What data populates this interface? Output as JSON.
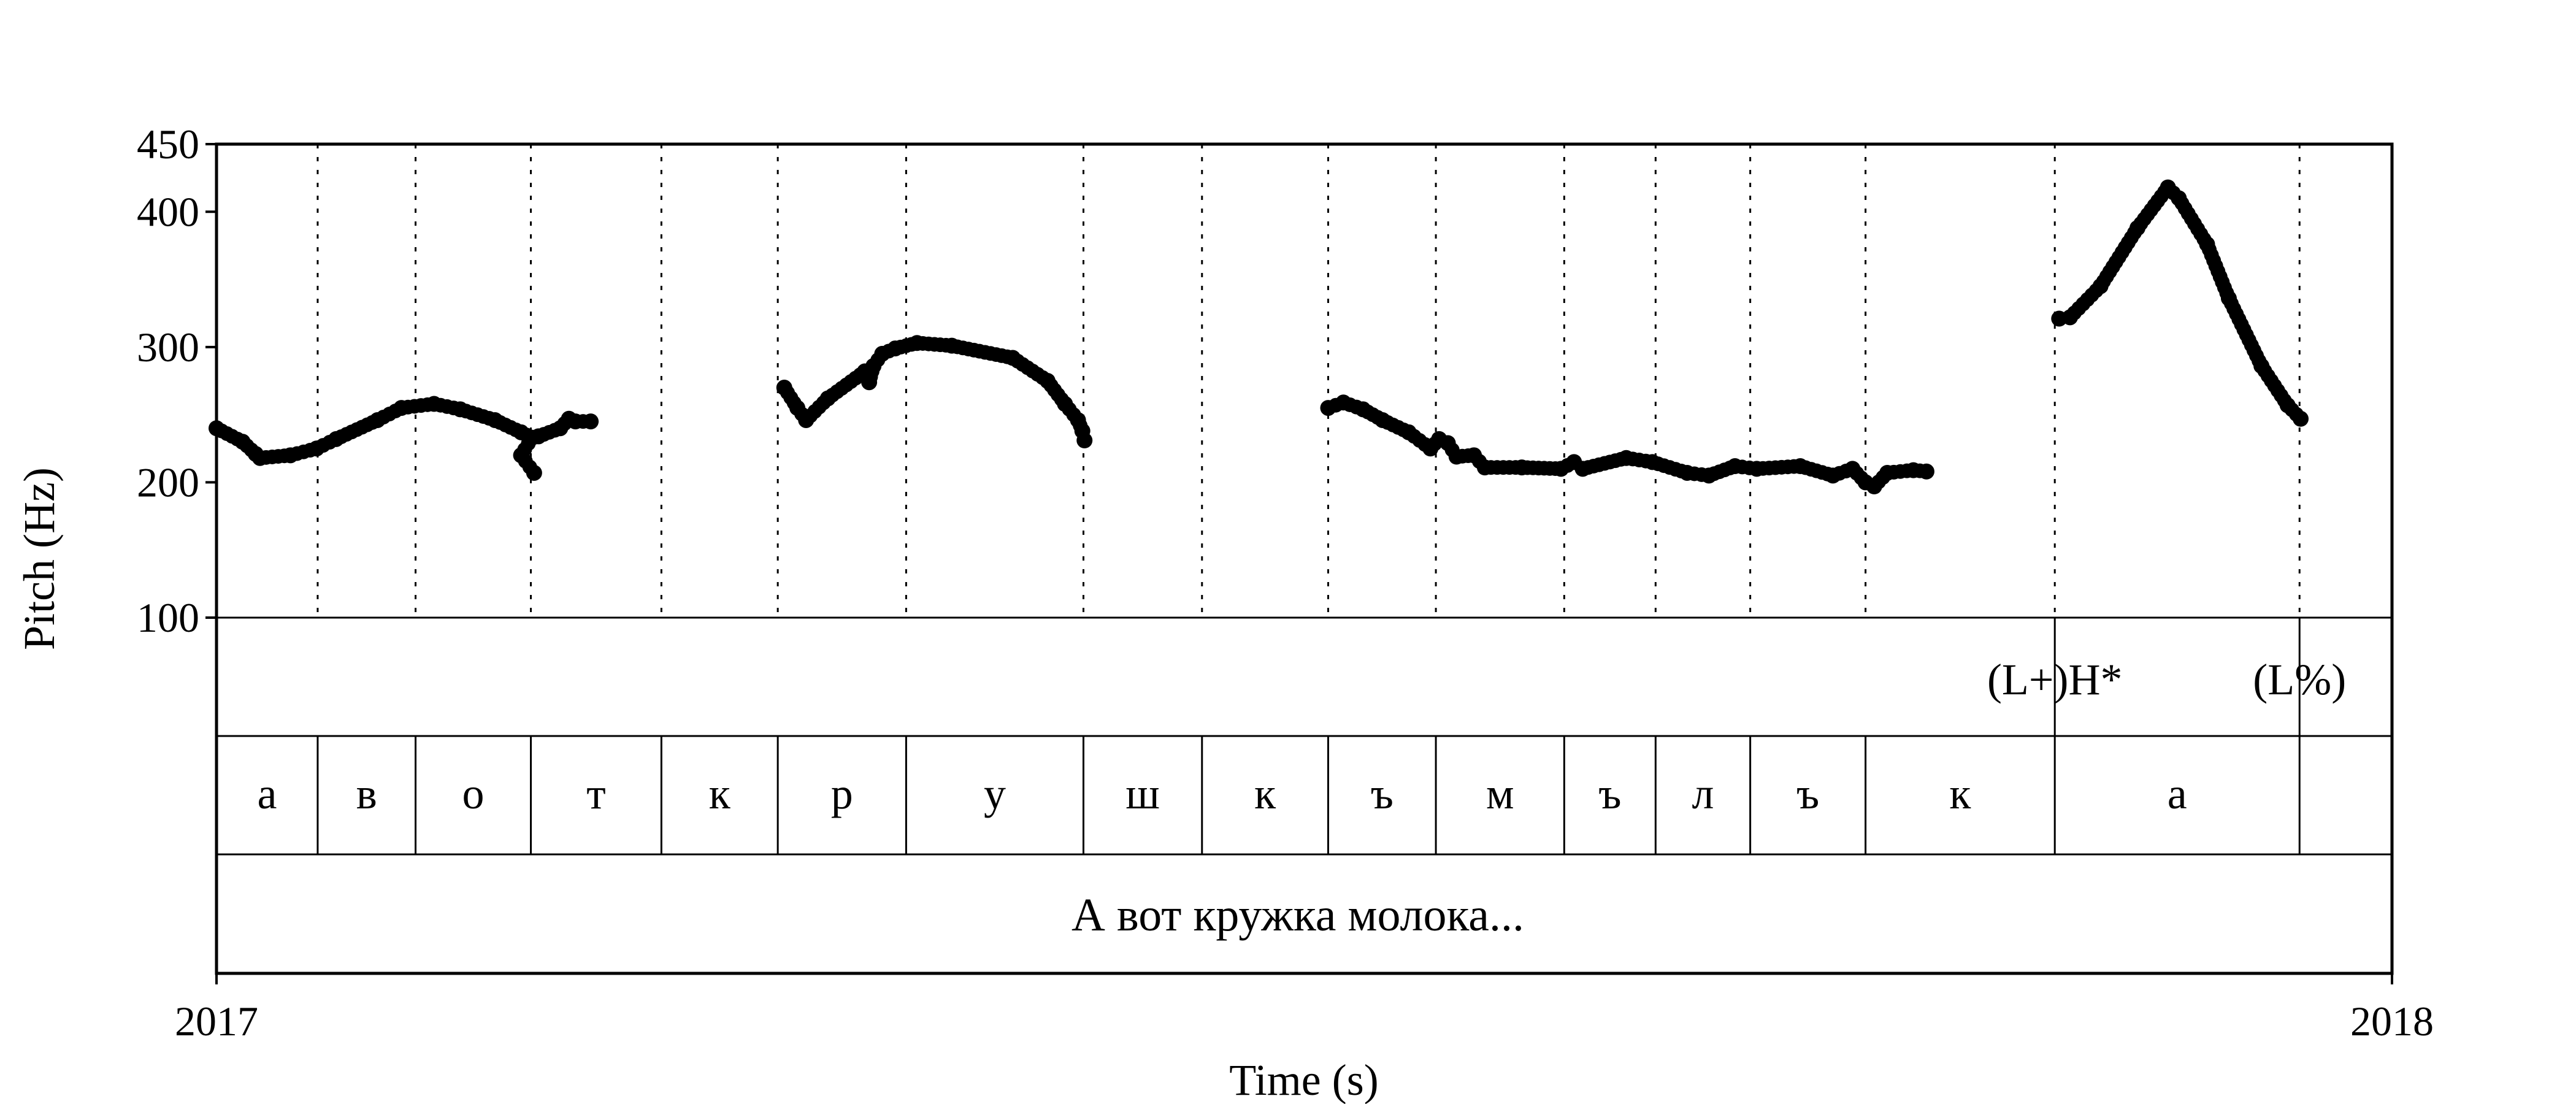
{
  "chart_data": {
    "type": "scatter",
    "xlabel": "Time (s)",
    "ylabel": "Pitch (Hz)",
    "xlim": [
      0,
      1
    ],
    "x_tick_labels": [
      "2017",
      "2018"
    ],
    "ylim": [
      100,
      450
    ],
    "yticks": [
      100,
      200,
      300,
      400,
      450
    ],
    "grid": false,
    "legend": "none",
    "point_color": "#000000",
    "boundaries": [
      0.0465,
      0.0915,
      0.1445,
      0.2045,
      0.258,
      0.317,
      0.3985,
      0.453,
      0.511,
      0.5605,
      0.6195,
      0.6615,
      0.705,
      0.758,
      0.845,
      0.9575
    ],
    "tone_tier": [
      {
        "label": "(L+)H*",
        "boundary": 0.845
      },
      {
        "label": "(L%)",
        "boundary": 0.9575
      }
    ],
    "segments": [
      {
        "label": "а",
        "start": 0.0,
        "end": 0.0465
      },
      {
        "label": "в",
        "start": 0.0465,
        "end": 0.0915
      },
      {
        "label": "о",
        "start": 0.0915,
        "end": 0.1445
      },
      {
        "label": "т",
        "start": 0.1445,
        "end": 0.2045
      },
      {
        "label": "к",
        "start": 0.2045,
        "end": 0.258
      },
      {
        "label": "р",
        "start": 0.258,
        "end": 0.317
      },
      {
        "label": "у",
        "start": 0.317,
        "end": 0.3985
      },
      {
        "label": "ш",
        "start": 0.3985,
        "end": 0.453
      },
      {
        "label": "к",
        "start": 0.453,
        "end": 0.511
      },
      {
        "label": "ъ",
        "start": 0.511,
        "end": 0.5605
      },
      {
        "label": "м",
        "start": 0.5605,
        "end": 0.6195
      },
      {
        "label": "ъ",
        "start": 0.6195,
        "end": 0.6615
      },
      {
        "label": "л",
        "start": 0.6615,
        "end": 0.705
      },
      {
        "label": "ъ",
        "start": 0.705,
        "end": 0.758
      },
      {
        "label": "к",
        "start": 0.758,
        "end": 0.845
      },
      {
        "label": "а",
        "start": 0.845,
        "end": 0.9575
      },
      {
        "label": "",
        "start": 0.9575,
        "end": 1.0
      }
    ],
    "phrase": "А вот кружка молока...",
    "series": [
      {
        "x": [
          0.0,
          0.012,
          0.018,
          0.02,
          0.034,
          0.046,
          0.055,
          0.074,
          0.085,
          0.1,
          0.112,
          0.128,
          0.14,
          0.145,
          0.14,
          0.146
        ],
        "y": [
          240,
          230,
          221,
          218,
          220,
          225,
          232,
          246,
          255,
          258,
          254,
          246,
          237,
          233,
          220,
          207
        ]
      },
      {
        "x": [
          0.148,
          0.158,
          0.162,
          0.165,
          0.172
        ],
        "y": [
          234,
          240,
          247,
          245,
          245
        ]
      },
      {
        "x": [
          0.261,
          0.267,
          0.271,
          0.281,
          0.298,
          0.3,
          0.302,
          0.306,
          0.312,
          0.322,
          0.338,
          0.366,
          0.382,
          0.39,
          0.396,
          0.398,
          0.399
        ],
        "y": [
          270,
          255,
          246,
          262,
          282,
          274,
          286,
          295,
          299,
          303,
          301,
          292,
          275,
          258,
          246,
          238,
          231
        ]
      },
      {
        "x": [
          0.511,
          0.518,
          0.527,
          0.536,
          0.548,
          0.558,
          0.562,
          0.566,
          0.57,
          0.578,
          0.583,
          0.6,
          0.618,
          0.624,
          0.628,
          0.648,
          0.66,
          0.676,
          0.686,
          0.698,
          0.708,
          0.728,
          0.743,
          0.752,
          0.758,
          0.762,
          0.768,
          0.78,
          0.786
        ],
        "y": [
          255,
          259,
          254,
          246,
          237,
          225,
          232,
          229,
          219,
          220,
          211,
          211,
          210,
          215,
          210,
          218,
          215,
          207,
          205,
          212,
          210,
          212,
          205,
          210,
          200,
          197,
          207,
          209,
          208
        ]
      },
      {
        "x": [
          0.847,
          0.852,
          0.866,
          0.883,
          0.897,
          0.902,
          0.915,
          0.925,
          0.94,
          0.952,
          0.958
        ],
        "y": [
          321,
          322,
          345,
          388,
          418,
          410,
          376,
          336,
          286,
          257,
          247
        ]
      }
    ]
  }
}
